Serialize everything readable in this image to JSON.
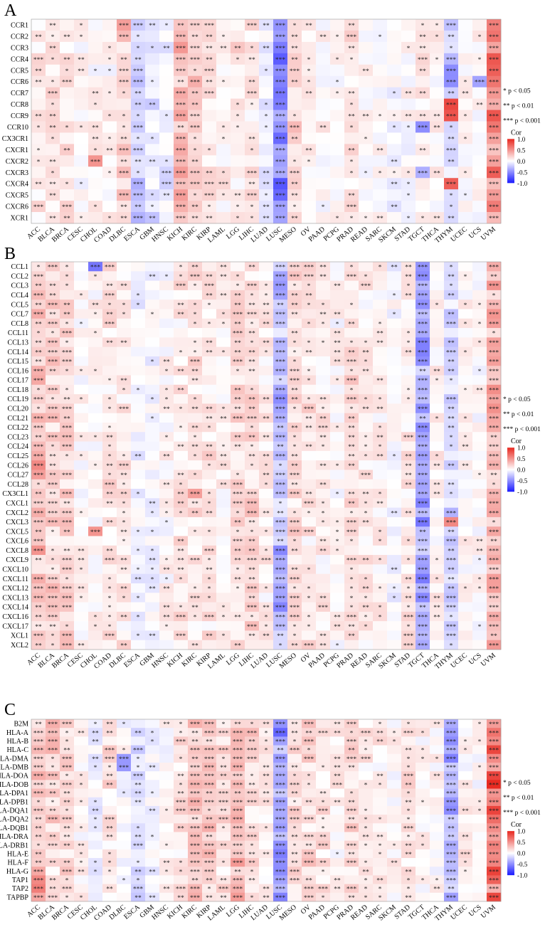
{
  "panels": [
    {
      "letter": "A",
      "rows": [
        "CCR1",
        "CCR2",
        "CCR3",
        "CCR4",
        "CCR5",
        "CCR6",
        "CCR7",
        "CCR8",
        "CCR9",
        "CCR10",
        "CX3CR1",
        "CXCR1",
        "CXCR2",
        "CXCR3",
        "CXCR4",
        "CXCR5",
        "CXCR6",
        "XCR1"
      ]
    },
    {
      "letter": "B",
      "rows": [
        "CCL1",
        "CCL2",
        "CCL3",
        "CCL4",
        "CCL5",
        "CCL7",
        "CCL8",
        "CCL11",
        "CCL13",
        "CCL14",
        "CCL15",
        "CCL16",
        "CCL17",
        "CCL18",
        "CCL19",
        "CCL20",
        "CCL21",
        "CCL22",
        "CCL23",
        "CCL24",
        "CCL25",
        "CCL26",
        "CCL27",
        "CCL28",
        "CX3CL1",
        "CXCL1",
        "CXCL2",
        "CXCL3",
        "CXCL5",
        "CXCL6",
        "CXCL8",
        "CXCL9",
        "CXCL10",
        "CXCL11",
        "CXCL12",
        "CXCL13",
        "CXCL14",
        "CXCL16",
        "CXCL17",
        "XCL1",
        "XCL2"
      ]
    },
    {
      "letter": "C",
      "rows": [
        "B2M",
        "HLA-A",
        "HLA-B",
        "HLA-C",
        "HLA-DMA",
        "HLA-DMB",
        "HLA-DOA",
        "HLA-DOB",
        "HLA-DPA1",
        "HLA-DPB1",
        "HLA-DQA1",
        "HLA-DQA2",
        "HLA-DQB1",
        "HLA-DRA",
        "HLA-DRB1",
        "HLA-E",
        "HLA-F",
        "HLA-G",
        "TAP1",
        "TAP2",
        "TAPBP"
      ]
    }
  ],
  "cancers": [
    "ACC",
    "BLCA",
    "BRCA",
    "CESC",
    "CHOL",
    "COAD",
    "DLBC",
    "ESCA",
    "GBM",
    "HNSC",
    "KICH",
    "KIRC",
    "KIRP",
    "LAML",
    "LGG",
    "LIHC",
    "LUAD",
    "LUSC",
    "MESO",
    "OV",
    "PAAD",
    "PCPG",
    "PRAD",
    "READ",
    "SARC",
    "SKCM",
    "STAD",
    "TGCT",
    "THCA",
    "THYM",
    "UCEC",
    "UCS",
    "UVM"
  ],
  "significance_legend": [
    "* p < 0.05",
    "** p < 0.01",
    "*** p < 0.001"
  ],
  "color_legend": {
    "title": "Cor",
    "ticks": [
      "1.0",
      "0.5",
      "0.0",
      "-0.5",
      "-1.0"
    ],
    "colors": {
      "low": "#1a1aff",
      "mid": "#ffffff",
      "high": "#e8281f"
    }
  },
  "chart_data": [
    {
      "type": "heatmap",
      "panel": "A",
      "x": [
        "ACC",
        "BLCA",
        "BRCA",
        "CESC",
        "CHOL",
        "COAD",
        "DLBC",
        "ESCA",
        "GBM",
        "HNSC",
        "KICH",
        "KIRC",
        "KIRP",
        "LAML",
        "LGG",
        "LIHC",
        "LUAD",
        "LUSC",
        "MESO",
        "OV",
        "PAAD",
        "PCPG",
        "PRAD",
        "READ",
        "SARC",
        "SKCM",
        "STAD",
        "TGCT",
        "THCA",
        "THYM",
        "UCEC",
        "UCS",
        "UVM"
      ],
      "y": [
        "CCR1",
        "CCR2",
        "CCR3",
        "CCR4",
        "CCR5",
        "CCR6",
        "CCR7",
        "CCR8",
        "CCR9",
        "CCR10",
        "CX3CR1",
        "CXCR1",
        "CXCR2",
        "CXCR3",
        "CXCR4",
        "CXCR5",
        "CXCR6",
        "XCR1"
      ],
      "value_range": [
        -1,
        1
      ],
      "column_trends": [
        0.1,
        0.12,
        0.12,
        0.02,
        0.05,
        0.05,
        0.2,
        -0.2,
        -0.12,
        -0.08,
        0.28,
        0.2,
        0.14,
        0.08,
        0.12,
        0.14,
        -0.08,
        -0.45,
        0.18,
        0.08,
        0.04,
        0.02,
        0.12,
        0.03,
        0.02,
        -0.03,
        0.02,
        0.08,
        0.06,
        -0.15,
        0.02,
        0.03,
        0.55
      ],
      "strong_cells": [
        [
          "CCR1",
          "UVM",
          0.6
        ],
        [
          "CCR1",
          "DLBC",
          0.45
        ],
        [
          "CCR8",
          "THYM",
          0.85
        ],
        [
          "CCR9",
          "THYM",
          0.8
        ],
        [
          "CXCR4",
          "THYM",
          0.75
        ],
        [
          "CCR5",
          "LUSC",
          -0.5
        ],
        [
          "CCR6",
          "LUSC",
          -0.55
        ],
        [
          "CCR10",
          "TGCT",
          -0.5
        ],
        [
          "CXCR2",
          "CHOL",
          0.5
        ],
        [
          "CCR5",
          "THYM",
          -0.5
        ],
        [
          "CCR6",
          "THYM",
          -0.5
        ],
        [
          "CXCR3",
          "TGCT",
          -0.35
        ],
        [
          "CCR6",
          "UCS",
          -0.4
        ]
      ],
      "significance": [
        "  ** ***                 ** *** ** ***   **              *  *** ** *** ** **             *** ** ***  *     ***",
        "        **     ***                      ** *** ** *** ** **   *   ** ***  ***               **  *** **     **      ***"
      ]
    },
    {
      "type": "heatmap",
      "panel": "B",
      "x": [
        "ACC",
        "BLCA",
        "BRCA",
        "CESC",
        "CHOL",
        "COAD",
        "DLBC",
        "ESCA",
        "GBM",
        "HNSC",
        "KICH",
        "KIRC",
        "KIRP",
        "LAML",
        "LGG",
        "LIHC",
        "LUAD",
        "LUSC",
        "MESO",
        "OV",
        "PAAD",
        "PCPG",
        "PRAD",
        "READ",
        "SARC",
        "SKCM",
        "STAD",
        "TGCT",
        "THCA",
        "THYM",
        "UCEC",
        "UCS",
        "UVM"
      ],
      "y": [
        "CCL1",
        "CCL2",
        "CCL3",
        "CCL4",
        "CCL5",
        "CCL7",
        "CCL8",
        "CCL11",
        "CCL13",
        "CCL14",
        "CCL15",
        "CCL16",
        "CCL17",
        "CCL18",
        "CCL19",
        "CCL20",
        "CCL21",
        "CCL22",
        "CCL23",
        "CCL24",
        "CCL25",
        "CCL26",
        "CCL27",
        "CCL28",
        "CX3CL1",
        "CXCL1",
        "CXCL2",
        "CXCL3",
        "CXCL5",
        "CXCL6",
        "CXCL8",
        "CXCL9",
        "CXCL10",
        "CXCL11",
        "CXCL12",
        "CXCL13",
        "CXCL14",
        "CXCL16",
        "CXCL17",
        "XCL1",
        "XCL2"
      ],
      "value_range": [
        -1,
        1
      ],
      "column_trends": [
        0.22,
        0.2,
        0.18,
        0.04,
        0.06,
        0.12,
        0.1,
        -0.04,
        -0.04,
        0.04,
        0.1,
        0.12,
        0.12,
        0.05,
        0.14,
        0.16,
        0.1,
        -0.3,
        0.15,
        0.12,
        0.08,
        0.04,
        0.16,
        0.1,
        0.06,
        -0.02,
        0.1,
        -0.38,
        0.06,
        -0.18,
        0.04,
        0.03,
        0.35
      ],
      "strong_cells": [
        [
          "CCL1",
          "CHOL",
          -0.6
        ],
        [
          "CCL26",
          "ACC",
          0.55
        ],
        [
          "CCL27",
          "ACC",
          0.45
        ],
        [
          "CXCL8",
          "ACC",
          0.5
        ],
        [
          "CXCL5",
          "CHOL",
          0.5
        ],
        [
          "CXCL3",
          "THYM",
          0.55
        ],
        [
          "CX3CL1",
          "KIRC",
          0.45
        ],
        [
          "CCL14",
          "TGCT",
          -0.55
        ],
        [
          "CCL15",
          "TGCT",
          -0.5
        ],
        [
          "CXCL1",
          "TGCT",
          -0.55
        ],
        [
          "CXCL3",
          "TGCT",
          -0.6
        ],
        [
          "CCL20",
          "LUSC",
          -0.4
        ]
      ],
      "significance": []
    },
    {
      "type": "heatmap",
      "panel": "C",
      "x": [
        "ACC",
        "BLCA",
        "BRCA",
        "CESC",
        "CHOL",
        "COAD",
        "DLBC",
        "ESCA",
        "GBM",
        "HNSC",
        "KICH",
        "KIRC",
        "KIRP",
        "LAML",
        "LGG",
        "LIHC",
        "LUAD",
        "LUSC",
        "MESO",
        "OV",
        "PAAD",
        "PCPG",
        "PRAD",
        "READ",
        "SARC",
        "SKCM",
        "STAD",
        "TGCT",
        "THCA",
        "THYM",
        "UCEC",
        "UCS",
        "UVM"
      ],
      "y": [
        "B2M",
        "HLA-A",
        "HLA-B",
        "HLA-C",
        "HLA-DMA",
        "HLA-DMB",
        "HLA-DOA",
        "HLA-DOB",
        "HLA-DPA1",
        "HLA-DPB1",
        "HLA-DQA1",
        "HLA-DQA2",
        "HLA-DQB1",
        "HLA-DRA",
        "HLA-DRB1",
        "HLA-E",
        "HLA-F",
        "HLA-G",
        "TAP1",
        "TAP2",
        "TAPBP"
      ],
      "value_range": [
        -1,
        1
      ],
      "column_trends": [
        0.25,
        0.2,
        0.18,
        0.05,
        -0.08,
        0.12,
        0.0,
        -0.12,
        -0.05,
        0.02,
        0.14,
        0.26,
        0.24,
        0.14,
        0.32,
        0.16,
        0.08,
        -0.42,
        0.14,
        0.16,
        0.12,
        0.06,
        0.18,
        0.12,
        0.08,
        0.04,
        0.12,
        0.05,
        0.03,
        -0.32,
        0.06,
        0.02,
        0.62
      ],
      "strong_cells": [
        [
          "TAP1",
          "ACC",
          0.55
        ],
        [
          "TAP2",
          "ACC",
          0.6
        ],
        [
          "TAPBP",
          "ACC",
          0.4
        ],
        [
          "HLA-DMA",
          "DLBC",
          -0.45
        ],
        [
          "HLA-DMB",
          "DLBC",
          -0.45
        ],
        [
          "HLA-DMA",
          "THYM",
          -0.55
        ],
        [
          "HLA-B",
          "THYM",
          -0.5
        ]
      ],
      "significance": []
    }
  ]
}
